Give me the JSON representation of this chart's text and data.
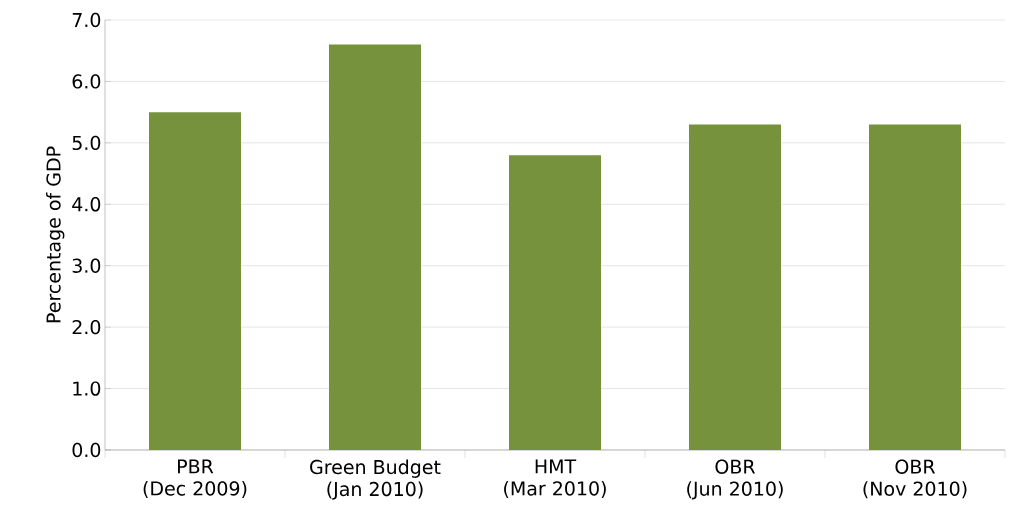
{
  "chart_data": {
    "type": "bar",
    "ylabel": "Percentage of GDP",
    "categories": [
      "PBR (Dec 2009)",
      "Green Budget (Jan 2010)",
      "HMT (Mar 2010)",
      "OBR (Jun 2010)",
      "OBR (Nov 2010)"
    ],
    "values": [
      5.5,
      6.6,
      4.8,
      5.3,
      5.3
    ],
    "color": "#76923c",
    "ylim": [
      0,
      7
    ],
    "yticks": [
      {
        "value": 0,
        "label": "0.0"
      },
      {
        "value": 1,
        "label": "1.0"
      },
      {
        "value": 2,
        "label": "2.0"
      },
      {
        "value": 3,
        "label": "3.0"
      },
      {
        "value": 4,
        "label": "4.0"
      },
      {
        "value": 5,
        "label": "5.0"
      },
      {
        "value": 6,
        "label": "6.0"
      },
      {
        "value": 7,
        "label": "7.0"
      }
    ],
    "grid": "y"
  }
}
